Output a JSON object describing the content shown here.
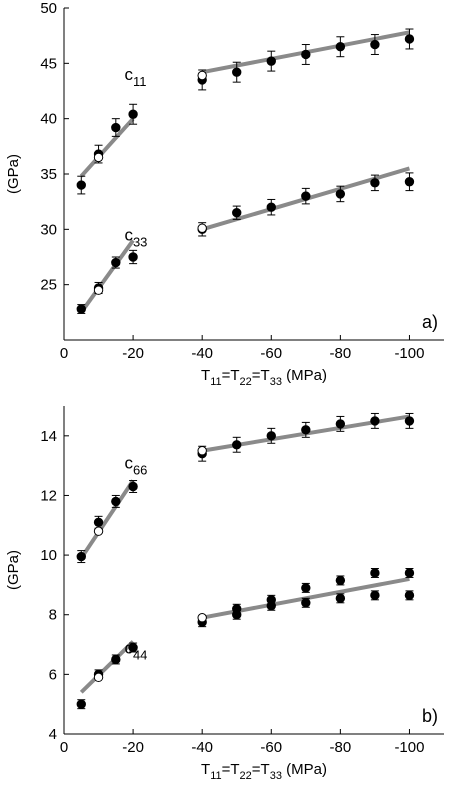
{
  "chart_data": [
    {
      "type": "scatter",
      "panel_label": "a)",
      "xlabel": "T11=T22=T33 (MPa)",
      "xlabel_parts": {
        "base": "T",
        "sub1": "11",
        "eq1": "=T",
        "sub2": "22",
        "eq2": "=T",
        "sub3": "33",
        "unit": " (MPa)"
      },
      "ylabel": "(GPa)",
      "xlim": [
        0,
        -110
      ],
      "ylim": [
        20,
        50
      ],
      "xticks": [
        0,
        -20,
        -40,
        -60,
        -80,
        -100
      ],
      "xtick_labels": [
        "0",
        "-20",
        "-40",
        "-60",
        "-80",
        "-100"
      ],
      "yticks": [
        25,
        30,
        35,
        40,
        45,
        50
      ],
      "ytick_labels": [
        "25",
        "30",
        "35",
        "40",
        "45",
        "50"
      ],
      "grid": false,
      "series": [
        {
          "name": "c11",
          "label_base": "c",
          "label_sub": "11",
          "label_at": [
            -17.5,
            43.5
          ],
          "points": [
            {
              "x": -5,
              "y": 34.0,
              "err": 0.8,
              "open": false
            },
            {
              "x": -10,
              "y": 36.8,
              "err": 0.8,
              "open": false
            },
            {
              "x": -10,
              "y": 36.5,
              "err": 0.0,
              "open": true
            },
            {
              "x": -15,
              "y": 39.2,
              "err": 0.8,
              "open": false
            },
            {
              "x": -20,
              "y": 40.4,
              "err": 0.9,
              "open": false
            },
            {
              "x": -40,
              "y": 43.5,
              "err": 0.9,
              "open": false
            },
            {
              "x": -40,
              "y": 43.9,
              "err": 0.0,
              "open": true
            },
            {
              "x": -50,
              "y": 44.2,
              "err": 0.9,
              "open": false
            },
            {
              "x": -60,
              "y": 45.2,
              "err": 0.9,
              "open": false
            },
            {
              "x": -70,
              "y": 45.8,
              "err": 0.9,
              "open": false
            },
            {
              "x": -80,
              "y": 46.5,
              "err": 0.9,
              "open": false
            },
            {
              "x": -90,
              "y": 46.7,
              "err": 0.9,
              "open": false
            },
            {
              "x": -100,
              "y": 47.2,
              "err": 0.9,
              "open": false
            }
          ],
          "fits": [
            {
              "x": [
                -5,
                -20
              ],
              "y": [
                34.8,
                40.0
              ]
            },
            {
              "x": [
                -40,
                -100
              ],
              "y": [
                44.2,
                47.8
              ]
            }
          ]
        },
        {
          "name": "c33",
          "label_base": "c",
          "label_sub": "33",
          "label_at": [
            -17.5,
            29.0
          ],
          "points": [
            {
              "x": -5,
              "y": 22.8,
              "err": 0.4,
              "open": false
            },
            {
              "x": -10,
              "y": 24.7,
              "err": 0.5,
              "open": false
            },
            {
              "x": -10,
              "y": 24.5,
              "err": 0.0,
              "open": true
            },
            {
              "x": -15,
              "y": 27.0,
              "err": 0.5,
              "open": false
            },
            {
              "x": -20,
              "y": 27.5,
              "err": 0.6,
              "open": false
            },
            {
              "x": -40,
              "y": 30.0,
              "err": 0.6,
              "open": false
            },
            {
              "x": -40,
              "y": 30.1,
              "err": 0.0,
              "open": true
            },
            {
              "x": -50,
              "y": 31.5,
              "err": 0.6,
              "open": false
            },
            {
              "x": -60,
              "y": 32.0,
              "err": 0.7,
              "open": false
            },
            {
              "x": -70,
              "y": 33.0,
              "err": 0.7,
              "open": false
            },
            {
              "x": -80,
              "y": 33.2,
              "err": 0.7,
              "open": false
            },
            {
              "x": -90,
              "y": 34.2,
              "err": 0.7,
              "open": false
            },
            {
              "x": -100,
              "y": 34.3,
              "err": 0.8,
              "open": false
            }
          ],
          "fits": [
            {
              "x": [
                -5,
                -20
              ],
              "y": [
                22.5,
                29.0
              ]
            },
            {
              "x": [
                -40,
                -100
              ],
              "y": [
                30.0,
                35.5
              ]
            }
          ]
        }
      ]
    },
    {
      "type": "scatter",
      "panel_label": "b)",
      "xlabel": "T11=T22=T33 (MPa)",
      "xlabel_parts": {
        "base": "T",
        "sub1": "11",
        "eq1": "=T",
        "sub2": "22",
        "eq2": "=T",
        "sub3": "33",
        "unit": " (MPa)"
      },
      "ylabel": "(GPa)",
      "xlim": [
        0,
        -110
      ],
      "ylim": [
        4,
        15
      ],
      "xticks": [
        0,
        -20,
        -40,
        -60,
        -80,
        -100
      ],
      "xtick_labels": [
        "0",
        "-20",
        "-40",
        "-60",
        "-80",
        "-100"
      ],
      "yticks": [
        4,
        6,
        8,
        10,
        12,
        14
      ],
      "ytick_labels": [
        "4",
        "6",
        "8",
        "10",
        "12",
        "14"
      ],
      "grid": false,
      "series": [
        {
          "name": "c66",
          "label_base": "c",
          "label_sub": "66",
          "label_at": [
            -17.5,
            12.9
          ],
          "points": [
            {
              "x": -5,
              "y": 9.95,
              "err": 0.2,
              "open": false
            },
            {
              "x": -10,
              "y": 11.1,
              "err": 0.2,
              "open": false
            },
            {
              "x": -10,
              "y": 10.8,
              "err": 0.0,
              "open": true
            },
            {
              "x": -15,
              "y": 11.8,
              "err": 0.2,
              "open": false
            },
            {
              "x": -20,
              "y": 12.3,
              "err": 0.2,
              "open": false
            },
            {
              "x": -40,
              "y": 13.4,
              "err": 0.25,
              "open": false
            },
            {
              "x": -40,
              "y": 13.5,
              "err": 0.0,
              "open": true
            },
            {
              "x": -50,
              "y": 13.7,
              "err": 0.25,
              "open": false
            },
            {
              "x": -60,
              "y": 14.0,
              "err": 0.25,
              "open": false
            },
            {
              "x": -70,
              "y": 14.2,
              "err": 0.25,
              "open": false
            },
            {
              "x": -80,
              "y": 14.4,
              "err": 0.25,
              "open": false
            },
            {
              "x": -90,
              "y": 14.5,
              "err": 0.25,
              "open": false
            },
            {
              "x": -100,
              "y": 14.5,
              "err": 0.25,
              "open": false
            }
          ],
          "fits": [
            {
              "x": [
                -5,
                -20
              ],
              "y": [
                9.9,
                12.5
              ]
            },
            {
              "x": [
                -40,
                -100
              ],
              "y": [
                13.5,
                14.65
              ]
            }
          ]
        },
        {
          "name": "c44",
          "label_base": "c",
          "label_sub": "44",
          "label_at": [
            -17.5,
            6.7
          ],
          "points": [
            {
              "x": -5,
              "y": 5.0,
              "err": 0.15,
              "open": false
            },
            {
              "x": -10,
              "y": 6.0,
              "err": 0.15,
              "open": false
            },
            {
              "x": -10,
              "y": 5.9,
              "err": 0.0,
              "open": true
            },
            {
              "x": -15,
              "y": 6.5,
              "err": 0.15,
              "open": false
            },
            {
              "x": -20,
              "y": 6.9,
              "err": 0.15,
              "open": false
            },
            {
              "x": -40,
              "y": 7.75,
              "err": 0.15,
              "open": false
            },
            {
              "x": -40,
              "y": 7.9,
              "err": 0.0,
              "open": true
            },
            {
              "x": -50,
              "y": 8.0,
              "err": 0.15,
              "open": false
            },
            {
              "x": -50,
              "y": 8.2,
              "err": 0.15,
              "open": false
            },
            {
              "x": -60,
              "y": 8.3,
              "err": 0.15,
              "open": false
            },
            {
              "x": -60,
              "y": 8.5,
              "err": 0.15,
              "open": false
            },
            {
              "x": -70,
              "y": 8.4,
              "err": 0.15,
              "open": false
            },
            {
              "x": -70,
              "y": 8.9,
              "err": 0.15,
              "open": false
            },
            {
              "x": -80,
              "y": 8.55,
              "err": 0.15,
              "open": false
            },
            {
              "x": -80,
              "y": 9.15,
              "err": 0.15,
              "open": false
            },
            {
              "x": -90,
              "y": 8.65,
              "err": 0.15,
              "open": false
            },
            {
              "x": -90,
              "y": 9.4,
              "err": 0.15,
              "open": false
            },
            {
              "x": -100,
              "y": 8.65,
              "err": 0.15,
              "open": false
            },
            {
              "x": -100,
              "y": 9.4,
              "err": 0.15,
              "open": false
            }
          ],
          "fits": [
            {
              "x": [
                -5,
                -20
              ],
              "y": [
                5.4,
                7.1
              ]
            },
            {
              "x": [
                -40,
                -100
              ],
              "y": [
                7.9,
                9.2
              ]
            }
          ]
        }
      ]
    }
  ],
  "colors": {
    "fit_line": "#8a8a8a",
    "marker": "#000000",
    "open_marker_fill": "#ffffff",
    "axis": "#000000"
  }
}
